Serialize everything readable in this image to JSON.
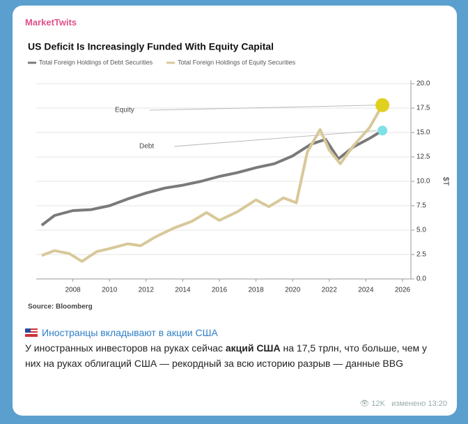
{
  "channel": "MarketTwits",
  "chart_data": {
    "type": "line",
    "title": "US Deficit Is Increasingly Funded With Equity Capital",
    "y_label": "$T",
    "source": "Source: Bloomberg",
    "xlim": [
      2006,
      2026
    ],
    "xticks": [
      2008,
      2010,
      2012,
      2014,
      2016,
      2018,
      2020,
      2022,
      2024,
      2026
    ],
    "ylim": [
      0,
      20
    ],
    "yticks": [
      {
        "value": 0,
        "label": "0.0"
      },
      2.5,
      {
        "value": 5,
        "label": "5.0"
      },
      7.5,
      {
        "value": 10,
        "label": "10.0"
      },
      12.5,
      {
        "value": 15,
        "label": "15.0"
      },
      17.5,
      {
        "value": 20,
        "label": "20.0"
      }
    ],
    "grid": true,
    "series": [
      {
        "name": "Total Foreign Holdings of Debt Securities",
        "label": "Debt",
        "color": "#7a7a7a",
        "x": [
          2006.3,
          2007,
          2008,
          2009,
          2010,
          2011,
          2012,
          2013,
          2014,
          2015,
          2016,
          2017,
          2018,
          2019,
          2020,
          2021,
          2021.8,
          2022.5,
          2023.3,
          2024.2,
          2024.9
        ],
        "values": [
          5.5,
          6.5,
          7.0,
          7.1,
          7.5,
          8.2,
          8.8,
          9.3,
          9.6,
          10.0,
          10.5,
          10.9,
          11.4,
          11.8,
          12.6,
          13.8,
          14.3,
          12.3,
          13.5,
          14.4,
          15.2
        ],
        "end_color": "#7fe0e6"
      },
      {
        "name": "Total Foreign Holdings of Equity Securities",
        "label": "Equity",
        "color": "#d8c89a",
        "x": [
          2006.3,
          2007,
          2007.8,
          2008.5,
          2009.3,
          2010,
          2011,
          2011.7,
          2012.5,
          2013.5,
          2014.5,
          2015.3,
          2016,
          2017,
          2018,
          2018.7,
          2019.5,
          2020.2,
          2020.8,
          2021.5,
          2022,
          2022.6,
          2023.3,
          2024.2,
          2024.9
        ],
        "values": [
          2.4,
          2.9,
          2.6,
          1.8,
          2.8,
          3.1,
          3.6,
          3.4,
          4.3,
          5.2,
          5.9,
          6.8,
          6.0,
          6.9,
          8.1,
          7.4,
          8.3,
          7.8,
          13.0,
          15.3,
          13.2,
          11.8,
          13.6,
          15.5,
          17.8
        ],
        "end_color": "#e0d020"
      }
    ]
  },
  "post": {
    "link": "Иностранцы вкладывают в акции США",
    "body_pre": "У иностранных инвесторов на руках сейчас ",
    "body_bold": "акций США",
    "body_post": " на 17,5 трлн, что больше, чем у них на руках облигаций США — рекордный за всю историю разрыв — данные BBG",
    "views": "12K",
    "time": "изменено 13:20"
  }
}
